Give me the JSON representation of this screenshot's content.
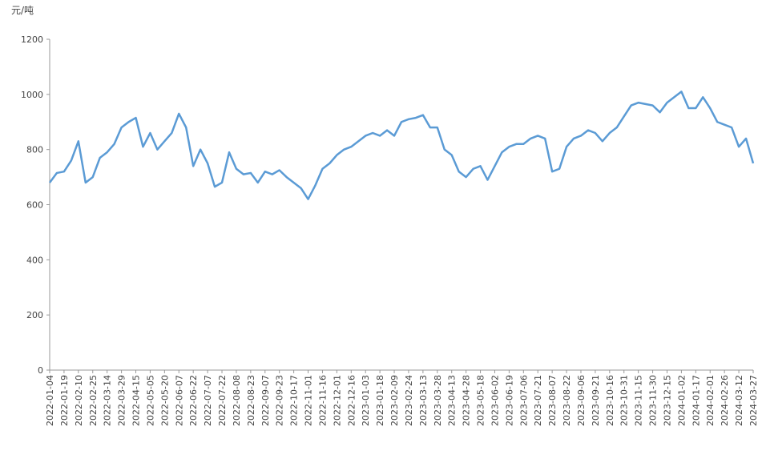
{
  "chart_data": {
    "type": "line",
    "y_label": "元/吨",
    "categories": [
      "2022-01-04",
      null,
      "2022-01-19",
      null,
      "2022-02-10",
      null,
      "2022-02-25",
      null,
      "2022-03-14",
      null,
      "2022-03-29",
      null,
      "2022-04-15",
      null,
      "2022-05-05",
      null,
      "2022-05-20",
      null,
      "2022-06-07",
      null,
      "2022-06-22",
      null,
      "2022-07-07",
      null,
      "2022-07-22",
      null,
      "2022-08-08",
      null,
      "2022-08-23",
      null,
      "2022-09-07",
      null,
      "2022-09-23",
      null,
      "2022-10-17",
      null,
      "2022-11-01",
      null,
      "2022-11-16",
      null,
      "2022-12-01",
      null,
      "2022-12-16",
      null,
      "2023-01-03",
      null,
      "2023-01-18",
      null,
      "2023-02-09",
      null,
      "2023-02-24",
      null,
      "2023-03-13",
      null,
      "2023-03-28",
      null,
      "2023-04-13",
      null,
      "2023-04-28",
      null,
      "2023-05-18",
      null,
      "2023-06-02",
      null,
      "2023-06-19",
      null,
      "2023-07-06",
      null,
      "2023-07-21",
      null,
      "2023-08-07",
      null,
      "2023-08-22",
      null,
      "2023-09-06",
      null,
      "2023-09-21",
      null,
      "2023-10-16",
      null,
      "2023-10-31",
      null,
      "2023-11-15",
      null,
      "2023-11-30",
      null,
      "2023-12-15",
      null,
      "2024-01-02",
      null,
      "2024-01-17",
      null,
      "2024-02-01",
      null,
      "2024-02-26",
      null,
      "2024-03-12",
      null,
      "2024-03-27"
    ],
    "series": [
      {
        "color": "#5b9bd5",
        "values": [
          680,
          715,
          720,
          760,
          830,
          680,
          700,
          770,
          790,
          820,
          880,
          900,
          915,
          810,
          860,
          800,
          830,
          860,
          930,
          880,
          740,
          800,
          750,
          665,
          680,
          790,
          730,
          710,
          715,
          680,
          720,
          710,
          725,
          700,
          680,
          660,
          620,
          670,
          730,
          750,
          780,
          800,
          810,
          830,
          850,
          860,
          850,
          870,
          850,
          900,
          910,
          915,
          925,
          880,
          880,
          800,
          780,
          720,
          700,
          730,
          740,
          690,
          740,
          790,
          810,
          820,
          820,
          840,
          850,
          840,
          720,
          730,
          810,
          840,
          850,
          870,
          860,
          830,
          860,
          880,
          920,
          960,
          970,
          965,
          960,
          935,
          970,
          990,
          1010,
          950,
          950,
          990,
          950,
          900,
          890,
          880,
          810,
          840,
          750
        ]
      }
    ],
    "ylim": [
      0,
      1200
    ],
    "yticks": [
      0,
      200,
      400,
      600,
      800,
      1000,
      1200
    ],
    "grid": false
  }
}
